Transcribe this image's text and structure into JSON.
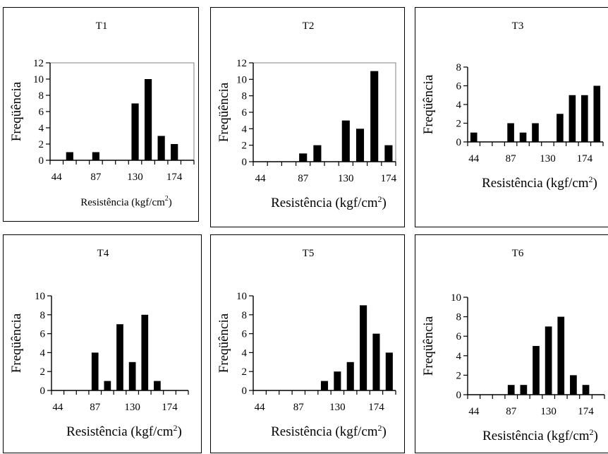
{
  "chart_data": [
    {
      "type": "bar",
      "title": "T1",
      "xlabel": "Resistência (kgf/cm",
      "xlabel_sup": "2",
      "xlabel_close": ")",
      "ylabel": "Freqüência",
      "ylim": [
        0,
        12
      ],
      "yticks": [
        0,
        2,
        4,
        6,
        8,
        10,
        12
      ],
      "x_tick_labels": [
        "44",
        "87",
        "130",
        "174"
      ],
      "label_bins": [
        0,
        3,
        6,
        9
      ],
      "bins": 11,
      "values": [
        0,
        1,
        0,
        1,
        0,
        0,
        7,
        10,
        3,
        2,
        0
      ],
      "plot_border": true
    },
    {
      "type": "bar",
      "title": "T2",
      "xlabel": "Resistência (kgf/cm",
      "xlabel_sup": "2",
      "xlabel_close": ")",
      "ylabel": "Freqüência",
      "ylim": [
        0,
        12
      ],
      "yticks": [
        0,
        2,
        4,
        6,
        8,
        10,
        12
      ],
      "x_tick_labels": [
        "44",
        "87",
        "130",
        "174"
      ],
      "label_bins": [
        0,
        3,
        6,
        9
      ],
      "bins": 10,
      "values": [
        0,
        0,
        0,
        1,
        2,
        0,
        5,
        4,
        11,
        2
      ],
      "plot_border": true
    },
    {
      "type": "bar",
      "title": "T3",
      "xlabel": "Resistência (kgf/cm",
      "xlabel_sup": "2",
      "xlabel_close": ")",
      "ylabel": "Freqüência",
      "ylim": [
        0,
        8
      ],
      "yticks": [
        0,
        2,
        4,
        6,
        8
      ],
      "x_tick_labels": [
        "44",
        "87",
        "130",
        "174"
      ],
      "label_bins": [
        0,
        3,
        6,
        9
      ],
      "bins": 11,
      "values": [
        1,
        0,
        0,
        2,
        1,
        2,
        0,
        3,
        5,
        5,
        6
      ],
      "plot_border": false
    },
    {
      "type": "bar",
      "title": "T4",
      "xlabel": "Resistência (kgf/cm",
      "xlabel_sup": "2",
      "xlabel_close": ")",
      "ylabel": "Freqüência",
      "ylim": [
        0,
        10
      ],
      "yticks": [
        0,
        2,
        4,
        6,
        8,
        10
      ],
      "x_tick_labels": [
        "44",
        "87",
        "130",
        "174"
      ],
      "label_bins": [
        0,
        3,
        6,
        9
      ],
      "bins": 11,
      "values": [
        0,
        0,
        0,
        4,
        1,
        7,
        3,
        8,
        1,
        0,
        0
      ],
      "plot_border": false
    },
    {
      "type": "bar",
      "title": "T5",
      "xlabel": "Resistência (kgf/cm",
      "xlabel_sup": "2",
      "xlabel_close": ")",
      "ylabel": "Freqüência",
      "ylim": [
        0,
        10
      ],
      "yticks": [
        0,
        2,
        4,
        6,
        8,
        10
      ],
      "x_tick_labels": [
        "44",
        "87",
        "130",
        "174"
      ],
      "label_bins": [
        0,
        3,
        6,
        9
      ],
      "bins": 11,
      "values": [
        0,
        0,
        0,
        0,
        0,
        1,
        2,
        3,
        9,
        6,
        4
      ],
      "plot_border": false
    },
    {
      "type": "bar",
      "title": "T6",
      "xlabel": "Resistência (kgf/cm",
      "xlabel_sup": "2",
      "xlabel_close": ")",
      "ylabel": "Freqüência",
      "ylim": [
        0,
        10
      ],
      "yticks": [
        0,
        2,
        4,
        6,
        8,
        10
      ],
      "x_tick_labels": [
        "44",
        "87",
        "130",
        "174"
      ],
      "label_bins": [
        0,
        3,
        6,
        9
      ],
      "bins": 11,
      "values": [
        0,
        0,
        0,
        1,
        1,
        5,
        7,
        8,
        2,
        1,
        0
      ],
      "plot_border": false
    }
  ]
}
